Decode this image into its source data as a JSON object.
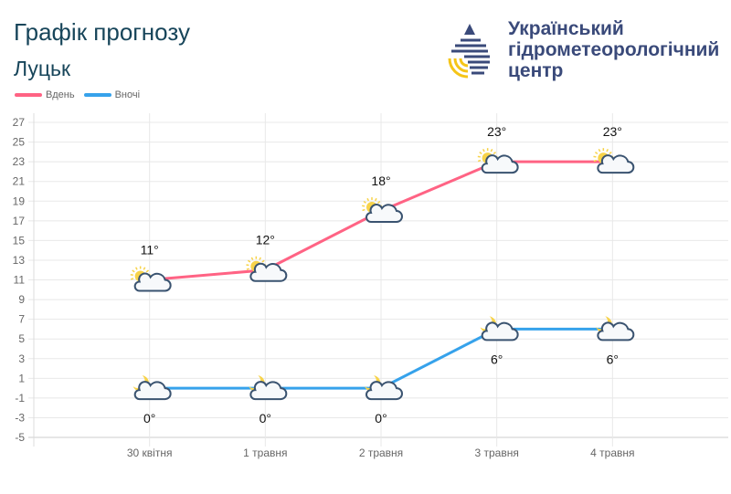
{
  "header": {
    "title": "Графік прогнозу",
    "city": "Луцьк"
  },
  "org": {
    "lines": [
      "Український",
      "гідрометеорологічний",
      "центр"
    ]
  },
  "chart_data": {
    "type": "line",
    "categories": [
      "30 квітня",
      "1 травня",
      "2 травня",
      "3 травня",
      "4 травня"
    ],
    "series": [
      {
        "name": "Вдень",
        "color": "#ff6384",
        "values": [
          11,
          12,
          18,
          23,
          23
        ],
        "labels": [
          "11°",
          "12°",
          "18°",
          "23°",
          "23°"
        ],
        "icon": "sun-cloud-icon"
      },
      {
        "name": "Вночі",
        "color": "#36a2eb",
        "values": [
          0,
          0,
          0,
          6,
          6
        ],
        "labels": [
          "0°",
          "0°",
          "0°",
          "6°",
          "6°"
        ],
        "icon": "moon-cloud-icon"
      }
    ],
    "yticks": [
      27,
      25,
      23,
      21,
      19,
      17,
      15,
      13,
      11,
      9,
      7,
      5,
      3,
      1,
      -1,
      -3,
      -5
    ],
    "ylim": [
      -5,
      27
    ],
    "grid": true,
    "legend": "top-left"
  }
}
